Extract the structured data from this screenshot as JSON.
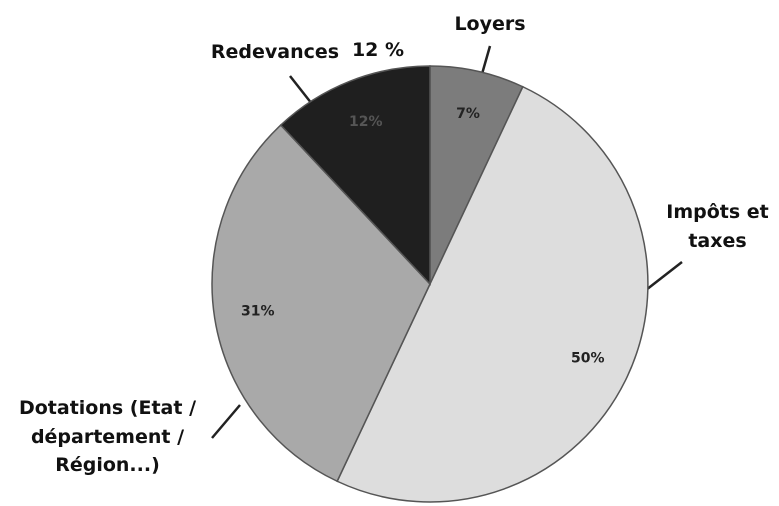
{
  "chart_data": {
    "type": "pie",
    "categories": [
      "Loyers",
      "Impôts et taxes",
      "Dotations (Etat / département / Région...)",
      "Redevances"
    ],
    "values": [
      7,
      50,
      31,
      12
    ],
    "value_labels": [
      "7%",
      "50%",
      "31%",
      "12%"
    ],
    "colors": [
      "#7c7c7c",
      "#dddddd",
      "#a9a9a9",
      "#1f1f1f"
    ],
    "annotations": [
      "12 %"
    ]
  }
}
